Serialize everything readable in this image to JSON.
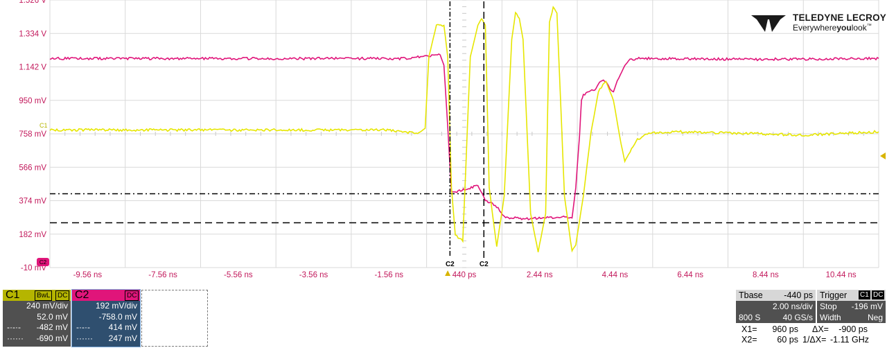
{
  "brand": {
    "name": "TELEDYNE LECROY",
    "tagline_pre": "Everywhere",
    "tagline_bold": "you",
    "tagline_post": "look",
    "trademark": "™"
  },
  "chart_data": {
    "type": "line",
    "title": "",
    "xlabel": "",
    "ylabel": "",
    "x_tick_labels": [
      "-9.56 ns",
      "-7.56 ns",
      "-5.56 ns",
      "-3.56 ns",
      "-1.56 ns",
      "440 ps",
      "2.44 ns",
      "4.44 ns",
      "6.44 ns",
      "8.44 ns",
      "10.44 ns"
    ],
    "x_ticks_ns": [
      -9.56,
      -7.56,
      -5.56,
      -3.56,
      -1.56,
      0.44,
      2.44,
      4.44,
      6.44,
      8.44,
      10.44
    ],
    "y_tick_labels": [
      "1.526 V",
      "1.334 V",
      "1.142 V",
      "950 mV",
      "758 mV",
      "566 mV",
      "374 mV",
      "182 mV",
      "-10 mV"
    ],
    "y_ticks_mV": [
      1526,
      1334,
      1142,
      950,
      758,
      566,
      374,
      182,
      -10
    ],
    "xlim": [
      -10.56,
      11.44
    ],
    "ylim": [
      -10,
      1526
    ],
    "grid": true,
    "series": [
      {
        "name": "C2",
        "color": "#e0157a",
        "x": [
          -10.56,
          -1.2,
          -0.2,
          -0.1,
          0.0,
          0.1,
          0.45,
          0.8,
          1.0,
          1.3,
          1.5,
          2.0,
          2.5,
          3.0,
          3.3,
          3.4,
          3.5,
          3.55,
          3.6,
          3.75,
          3.9,
          4.0,
          4.1,
          4.2,
          4.3,
          4.4,
          4.5,
          4.7,
          4.8,
          5.0,
          6.0,
          8.0,
          11.44
        ],
        "y": [
          1190,
          1190,
          1210,
          1150,
          800,
          420,
          440,
          460,
          380,
          340,
          280,
          270,
          275,
          280,
          275,
          450,
          750,
          950,
          980,
          1000,
          1010,
          1050,
          1060,
          1060,
          1020,
          1000,
          1060,
          1150,
          1180,
          1190,
          1190,
          1185,
          1190
        ]
      },
      {
        "name": "C1",
        "color": "#e6e600",
        "x": [
          -10.56,
          -1.6,
          -0.8,
          -0.6,
          -0.5,
          -0.3,
          -0.1,
          0.0,
          0.1,
          0.2,
          0.4,
          0.6,
          0.8,
          0.9,
          1.0,
          1.1,
          1.3,
          1.5,
          1.7,
          1.8,
          1.9,
          2.0,
          2.2,
          2.4,
          2.6,
          2.7,
          2.8,
          2.9,
          3.1,
          3.3,
          3.4,
          3.6,
          3.8,
          4.0,
          4.2,
          4.4,
          4.6,
          4.7,
          4.8,
          5.0,
          5.3,
          6.0,
          8.0,
          9.5,
          11.44
        ],
        "y": [
          780,
          780,
          760,
          790,
          1200,
          1380,
          1380,
          1200,
          450,
          180,
          140,
          1200,
          1380,
          1420,
          1380,
          450,
          110,
          400,
          1300,
          1450,
          1420,
          1300,
          300,
          80,
          300,
          1400,
          1480,
          1450,
          400,
          80,
          120,
          400,
          760,
          1000,
          1060,
          950,
          700,
          600,
          640,
          720,
          760,
          770,
          760,
          750,
          770
        ]
      }
    ],
    "cursor_levels_mV": [
      414,
      247
    ],
    "cursor_times_ns": [
      0.96,
      0.06
    ],
    "trigger_time_ns": 0.0,
    "cursor_time_label": "C2",
    "ref_level_label": "C1",
    "ground_marker_label": "C2"
  },
  "channels": [
    {
      "id": "C1",
      "tags": [
        "BwL",
        "DC"
      ],
      "vdiv": "240 mV/div",
      "offset": "52.0 mV",
      "cur1": "-482 mV",
      "cur2": "-690 mV",
      "color": "#b5b500"
    },
    {
      "id": "C2",
      "tags": [
        "DC"
      ],
      "vdiv": "192 mV/div",
      "offset": "-758.0 mV",
      "cur1": "414 mV",
      "cur2": "247 mV",
      "color": "#e0157a"
    }
  ],
  "timebase": {
    "label": "Tbase",
    "value": "-440 ps",
    "div": "2.00 ns/div",
    "samples": "800 S",
    "rate": "40 GS/s"
  },
  "trigger": {
    "label": "Trigger",
    "src": "C1",
    "coupling": "DC",
    "mode": "Stop",
    "level": "-196 mV",
    "type": "Width",
    "slope": "Neg"
  },
  "cursors": {
    "x1_label": "X1=",
    "x1": "960 ps",
    "dx_label": "ΔX=",
    "dx": "-900 ps",
    "x2_label": "X2=",
    "x2": "60 ps",
    "inv_label": "1/ΔX=",
    "inv": "-1.11 GHz"
  }
}
